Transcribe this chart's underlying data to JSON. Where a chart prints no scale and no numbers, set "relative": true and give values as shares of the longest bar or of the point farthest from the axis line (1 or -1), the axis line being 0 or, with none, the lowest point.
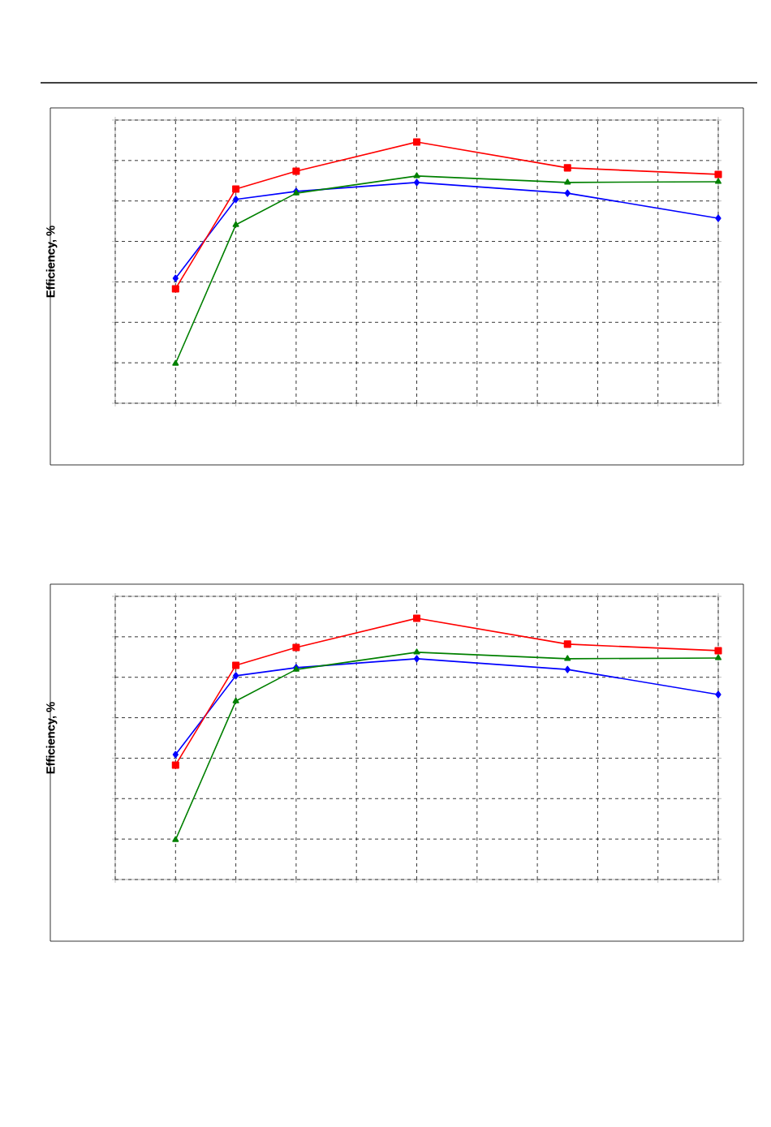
{
  "chart_data": [
    {
      "type": "line",
      "ylabel": "Efficiency, %",
      "relative": true,
      "grid": true,
      "categories": [
        null,
        null,
        null,
        null,
        null,
        null,
        null,
        null,
        null,
        null,
        null,
        null,
        null,
        null,
        null,
        null,
        null,
        null,
        null,
        null,
        null
      ],
      "series": [
        {
          "color": "#0000ff",
          "marker": "diamond",
          "values": [
            null,
            null,
            0.478,
            null,
            0.78,
            null,
            0.811,
            null,
            null,
            null,
            0.845,
            null,
            null,
            null,
            null,
            0.804,
            null,
            null,
            null,
            null,
            0.708
          ]
        },
        {
          "color": "#ff0000",
          "marker": "square",
          "values": [
            null,
            null,
            0.438,
            null,
            0.82,
            null,
            0.888,
            null,
            null,
            null,
            1,
            null,
            null,
            null,
            null,
            0.901,
            null,
            null,
            null,
            null,
            0.876
          ]
        },
        {
          "color": "#008000",
          "marker": "triangle",
          "values": [
            null,
            null,
            0.152,
            null,
            0.683,
            null,
            0.804,
            null,
            null,
            null,
            0.87,
            null,
            null,
            null,
            null,
            0.845,
            null,
            null,
            null,
            null,
            0.848
          ]
        }
      ]
    },
    {
      "type": "line",
      "ylabel": "Efficiency, %",
      "relative": true,
      "grid": true,
      "categories": [
        null,
        null,
        null,
        null,
        null,
        null,
        null,
        null,
        null,
        null,
        null,
        null,
        null,
        null,
        null,
        null,
        null,
        null,
        null,
        null,
        null
      ],
      "series": [
        {
          "color": "#0000ff",
          "marker": "diamond",
          "values": [
            null,
            null,
            0.478,
            null,
            0.78,
            null,
            0.811,
            null,
            null,
            null,
            0.845,
            null,
            null,
            null,
            null,
            0.804,
            null,
            null,
            null,
            null,
            0.708
          ]
        },
        {
          "color": "#ff0000",
          "marker": "square",
          "values": [
            null,
            null,
            0.438,
            null,
            0.82,
            null,
            0.888,
            null,
            null,
            null,
            1,
            null,
            null,
            null,
            null,
            0.901,
            null,
            null,
            null,
            null,
            0.876
          ]
        },
        {
          "color": "#008000",
          "marker": "triangle",
          "values": [
            null,
            null,
            0.152,
            null,
            0.683,
            null,
            0.804,
            null,
            null,
            null,
            0.87,
            null,
            null,
            null,
            null,
            0.845,
            null,
            null,
            null,
            null,
            0.848
          ]
        }
      ]
    }
  ]
}
